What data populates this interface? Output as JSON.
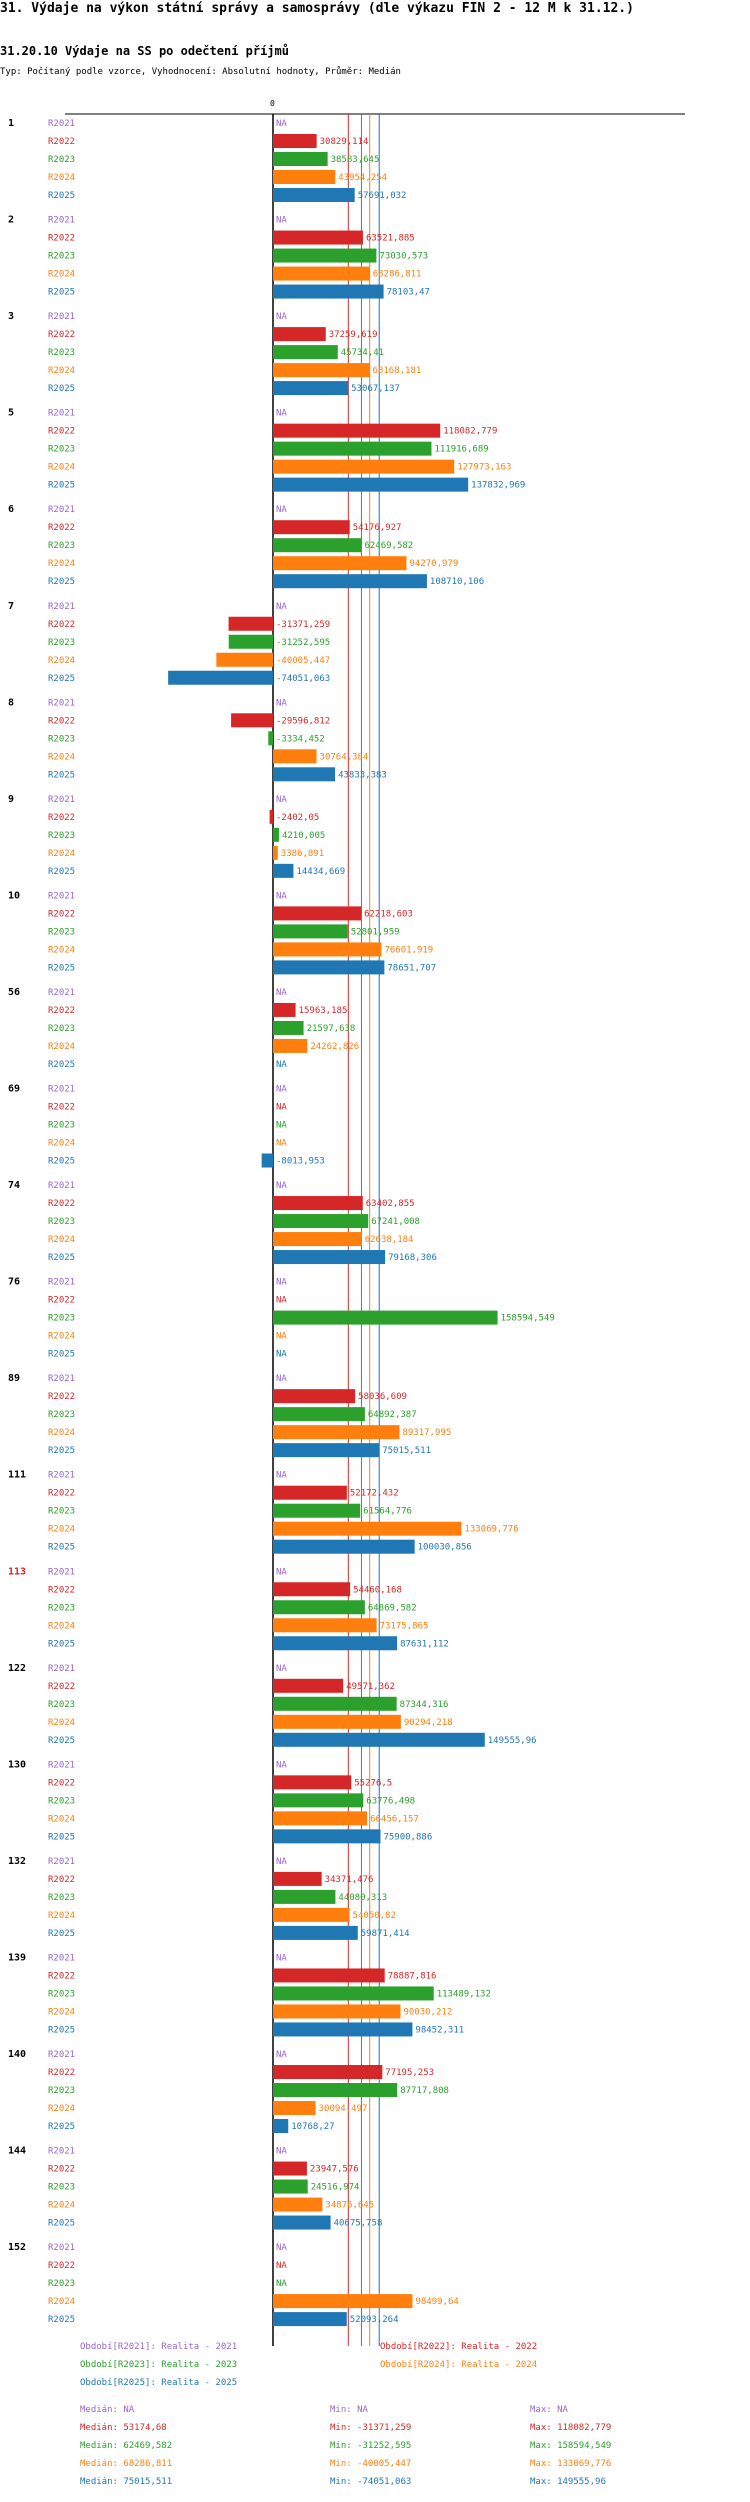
{
  "title": "31. Výdaje na výkon státní správy a samosprávy (dle výkazu FIN 2 - 12 M k 31.12.)",
  "subtitle": "31.20.10 Výdaje na SS po odečtení příjmů",
  "type_line": "Typ: Počítaný podle vzorce, Vyhodnocení: Absolutní hodnoty, Průměr: Medián",
  "colors": {
    "R2021": "#9966cc",
    "R2022": "#d62728",
    "R2023": "#2ca02c",
    "R2024": "#ff7f0e",
    "R2025": "#1f77b4"
  },
  "chart_data": {
    "type": "bar",
    "orientation": "horizontal",
    "zero_label": "0",
    "na_label": "NA",
    "x_range": [
      -74051.063,
      158594.549
    ],
    "series_names": [
      "R2021",
      "R2022",
      "R2023",
      "R2024",
      "R2025"
    ],
    "groups": [
      {
        "label": "1",
        "highlight": false,
        "values": [
          null,
          30829.114,
          38583.645,
          43954.254,
          57691.032
        ],
        "labels": [
          "NA",
          "30829,114",
          "38583,645",
          "43954,254",
          "57691,032"
        ]
      },
      {
        "label": "2",
        "highlight": false,
        "values": [
          null,
          63521.885,
          73030.573,
          68286.811,
          78103.47
        ],
        "labels": [
          "NA",
          "63521,885",
          "73030,573",
          "68286,811",
          "78103,47"
        ]
      },
      {
        "label": "3",
        "highlight": false,
        "values": [
          null,
          37259.619,
          45734.41,
          68168.181,
          53067.137
        ],
        "labels": [
          "NA",
          "37259,619",
          "45734,41",
          "68168,181",
          "53067,137"
        ]
      },
      {
        "label": "5",
        "highlight": false,
        "values": [
          null,
          118082.779,
          111916.689,
          127973.163,
          137832.969
        ],
        "labels": [
          "NA",
          "118082,779",
          "111916,689",
          "127973,163",
          "137832,969"
        ]
      },
      {
        "label": "6",
        "highlight": false,
        "values": [
          null,
          54176.927,
          62469.582,
          94270.979,
          108710.106
        ],
        "labels": [
          "NA",
          "54176,927",
          "62469,582",
          "94270,979",
          "108710,106"
        ]
      },
      {
        "label": "7",
        "highlight": false,
        "values": [
          null,
          -31371.259,
          -31252.595,
          -40005.447,
          -74051.063
        ],
        "labels": [
          "NA",
          "-31371,259",
          "-31252,595",
          "-40005,447",
          "-74051,063"
        ]
      },
      {
        "label": "8",
        "highlight": false,
        "values": [
          null,
          -29596.812,
          -3334.452,
          30764.384,
          43833.383
        ],
        "labels": [
          "NA",
          "-29596,812",
          "-3334,452",
          "30764,384",
          "43833,383"
        ]
      },
      {
        "label": "9",
        "highlight": false,
        "values": [
          null,
          -2402.05,
          4210.005,
          3386.891,
          14434.669
        ],
        "labels": [
          "NA",
          "-2402,05",
          "4210,005",
          "3386,891",
          "14434,669"
        ]
      },
      {
        "label": "10",
        "highlight": false,
        "values": [
          null,
          62218.603,
          52801.959,
          76601.919,
          78651.707
        ],
        "labels": [
          "NA",
          "62218,603",
          "52801,959",
          "76601,919",
          "78651,707"
        ]
      },
      {
        "label": "56",
        "highlight": false,
        "values": [
          null,
          15963.185,
          21597.638,
          24262.826,
          null
        ],
        "labels": [
          "NA",
          "15963,185",
          "21597,638",
          "24262,826",
          "NA"
        ]
      },
      {
        "label": "69",
        "highlight": false,
        "values": [
          null,
          null,
          null,
          null,
          -8013.953
        ],
        "labels": [
          "NA",
          "NA",
          "NA",
          "NA",
          "-8013,953"
        ]
      },
      {
        "label": "74",
        "highlight": false,
        "values": [
          null,
          63402.855,
          67241.008,
          62638.184,
          79168.306
        ],
        "labels": [
          "NA",
          "63402,855",
          "67241,008",
          "62638,184",
          "79168,306"
        ]
      },
      {
        "label": "76",
        "highlight": false,
        "values": [
          null,
          null,
          158594.549,
          null,
          null
        ],
        "labels": [
          "NA",
          "NA",
          "158594,549",
          "NA",
          "NA"
        ]
      },
      {
        "label": "89",
        "highlight": false,
        "values": [
          null,
          58036.609,
          64892.387,
          89317.995,
          75015.511
        ],
        "labels": [
          "NA",
          "58036,609",
          "64892,387",
          "89317,995",
          "75015,511"
        ]
      },
      {
        "label": "111",
        "highlight": false,
        "values": [
          null,
          52172.432,
          61564.776,
          133069.776,
          100030.856
        ],
        "labels": [
          "NA",
          "52172,432",
          "61564,776",
          "133069,776",
          "100030,856"
        ]
      },
      {
        "label": "113",
        "highlight": true,
        "values": [
          null,
          54460.168,
          64869.582,
          73175.865,
          87631.112
        ],
        "labels": [
          "NA",
          "54460,168",
          "64869,582",
          "73175,865",
          "87631,112"
        ]
      },
      {
        "label": "122",
        "highlight": false,
        "values": [
          null,
          49571.362,
          87344.316,
          90294.218,
          149555.96
        ],
        "labels": [
          "NA",
          "49571,362",
          "87344,316",
          "90294,218",
          "149555,96"
        ]
      },
      {
        "label": "130",
        "highlight": false,
        "values": [
          null,
          55276.5,
          63776.498,
          66456.157,
          75900.886
        ],
        "labels": [
          "NA",
          "55276,5",
          "63776,498",
          "66456,157",
          "75900,886"
        ]
      },
      {
        "label": "132",
        "highlight": false,
        "values": [
          null,
          34371.476,
          44080.313,
          54050.82,
          59871.414
        ],
        "labels": [
          "NA",
          "34371,476",
          "44080,313",
          "54050,82",
          "59871,414"
        ]
      },
      {
        "label": "139",
        "highlight": false,
        "values": [
          null,
          78887.816,
          113489.132,
          90030.212,
          98452.311
        ],
        "labels": [
          "NA",
          "78887,816",
          "113489,132",
          "90030,212",
          "98452,311"
        ]
      },
      {
        "label": "140",
        "highlight": false,
        "values": [
          null,
          77195.253,
          87717.808,
          30094.497,
          10768.27
        ],
        "labels": [
          "NA",
          "77195,253",
          "87717,808",
          "30094,497",
          "10768,27"
        ]
      },
      {
        "label": "144",
        "highlight": false,
        "values": [
          null,
          23947.576,
          24516.974,
          34876.645,
          40675.758
        ],
        "labels": [
          "NA",
          "23947,576",
          "24516,974",
          "34876,645",
          "40675,758"
        ]
      },
      {
        "label": "152",
        "highlight": false,
        "values": [
          null,
          null,
          null,
          98499.64,
          52093.264
        ],
        "labels": [
          "NA",
          "NA",
          "NA",
          "98499,64",
          "52093,264"
        ]
      }
    ],
    "median_lines": [
      {
        "series": "R2022",
        "value": 53174.68
      },
      {
        "series": "R2023",
        "value": 62469.582
      },
      {
        "series": "R2024",
        "value": 68286.811
      },
      {
        "series": "R2025",
        "value": 75015.511
      }
    ]
  },
  "legend": {
    "items": [
      {
        "series": "R2021",
        "text": "Období[R2021]: Realita - 2021"
      },
      {
        "series": "R2022",
        "text": "Období[R2022]: Realita - 2022"
      },
      {
        "series": "R2023",
        "text": "Období[R2023]: Realita - 2023"
      },
      {
        "series": "R2024",
        "text": "Období[R2024]: Realita - 2024"
      },
      {
        "series": "R2025",
        "text": "Období[R2025]: Realita - 2025"
      }
    ],
    "stats": [
      {
        "series": "R2021",
        "median": "Medián: NA",
        "min": "Min: NA",
        "max": "Max: NA"
      },
      {
        "series": "R2022",
        "median": "Medián: 53174,68",
        "min": "Min: -31371,259",
        "max": "Max: 118082,779"
      },
      {
        "series": "R2023",
        "median": "Medián: 62469,582",
        "min": "Min: -31252,595",
        "max": "Max: 158594,549"
      },
      {
        "series": "R2024",
        "median": "Medián: 68286,811",
        "min": "Min: -40005,447",
        "max": "Max: 133069,776"
      },
      {
        "series": "R2025",
        "median": "Medián: 75015,511",
        "min": "Min: -74051,063",
        "max": "Max: 149555,96"
      }
    ]
  }
}
